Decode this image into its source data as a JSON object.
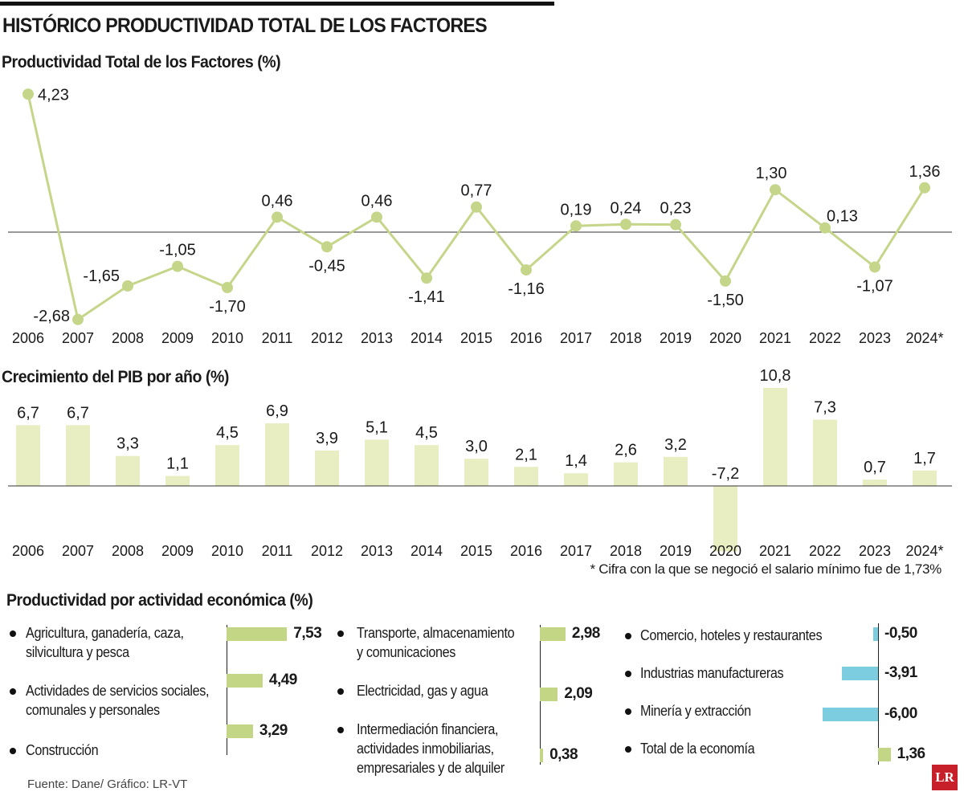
{
  "header": {
    "title": "HISTÓRICO PRODUCTIVIDAD TOTAL DE LOS FACTORES"
  },
  "colors": {
    "line_green": "#c5d68a",
    "bar_light": "#e9eec2",
    "bar_green": "#c2d685",
    "bar_blue": "#7dcde0"
  },
  "chart_data": [
    {
      "type": "line",
      "title": "Productividad Total de los Factores (%)",
      "categories": [
        "2006",
        "2007",
        "2008",
        "2009",
        "2010",
        "2011",
        "2012",
        "2013",
        "2014",
        "2015",
        "2016",
        "2017",
        "2018",
        "2019",
        "2020",
        "2021",
        "2022",
        "2023",
        "2024*"
      ],
      "values": [
        4.23,
        -2.68,
        -1.65,
        -1.05,
        -1.7,
        0.46,
        -0.45,
        0.46,
        -1.41,
        0.77,
        -1.16,
        0.19,
        0.24,
        0.23,
        -1.5,
        1.3,
        0.13,
        -1.07,
        1.36
      ],
      "labels": [
        "4,23",
        "-2,68",
        "-1,65",
        "-1,05",
        "-1,70",
        "0,46",
        "-0,45",
        "0,46",
        "-1,41",
        "0,77",
        "-1,16",
        "0,19",
        "0,24",
        "0,23",
        "-1,50",
        "1,30",
        "0,13",
        "-1,07",
        "1,36"
      ],
      "grid": false,
      "zero_line": true
    },
    {
      "type": "bar",
      "title": "Crecimiento del PIB por año (%)",
      "categories": [
        "2006",
        "2007",
        "2008",
        "2009",
        "2010",
        "2011",
        "2012",
        "2013",
        "2014",
        "2015",
        "2016",
        "2017",
        "2018",
        "2019",
        "2020",
        "2021",
        "2022",
        "2023",
        "2024*"
      ],
      "values": [
        6.7,
        6.7,
        3.3,
        1.1,
        4.5,
        6.9,
        3.9,
        5.1,
        4.5,
        3.0,
        2.1,
        1.4,
        2.6,
        3.2,
        -7.2,
        10.8,
        7.3,
        0.7,
        1.7
      ],
      "labels": [
        "6,7",
        "6,7",
        "3,3",
        "1,1",
        "4,5",
        "6,9",
        "3,9",
        "5,1",
        "4,5",
        "3,0",
        "2,1",
        "1,4",
        "2,6",
        "3,2",
        "-7,2",
        "10,8",
        "7,3",
        "0,7",
        "1,7"
      ],
      "footnote": "* Cifra con la que se negoció el salario mínimo fue de 1,73%",
      "grid": false
    },
    {
      "type": "bar",
      "orientation": "horizontal",
      "title": "Productividad por actividad económica (%)",
      "groups": [
        [
          {
            "label": "Agricultura, ganadería, caza,\nsilvicultura y pesca",
            "value": 7.53,
            "value_label": "7,53"
          },
          {
            "label": "Actividades de servicios sociales,\ncomunales y personales",
            "value": 4.49,
            "value_label": "4,49"
          },
          {
            "label": "Construcción",
            "value": 3.29,
            "value_label": "3,29"
          }
        ],
        [
          {
            "label": "Transporte, almacenamiento\ny comunicaciones",
            "value": 2.98,
            "value_label": "2,98"
          },
          {
            "label": "Electricidad, gas y agua",
            "value": 2.09,
            "value_label": "2,09"
          },
          {
            "label": "Intermediación financiera,\nactividades inmobiliarias,\nempresariales y de alquiler",
            "value": 0.38,
            "value_label": "0,38"
          }
        ],
        [
          {
            "label": "Comercio, hoteles y restaurantes",
            "value": -0.5,
            "value_label": "-0,50"
          },
          {
            "label": "Industrias manufactureras",
            "value": -3.91,
            "value_label": "-3,91"
          },
          {
            "label": "Minería y extracción",
            "value": -6.0,
            "value_label": "-6,00"
          },
          {
            "label": "Total de la economía",
            "value": 1.36,
            "value_label": "1,36"
          }
        ]
      ]
    }
  ],
  "footer": {
    "source": "Fuente: Dane/ Gráfico: LR-VT",
    "logo": "LR"
  }
}
